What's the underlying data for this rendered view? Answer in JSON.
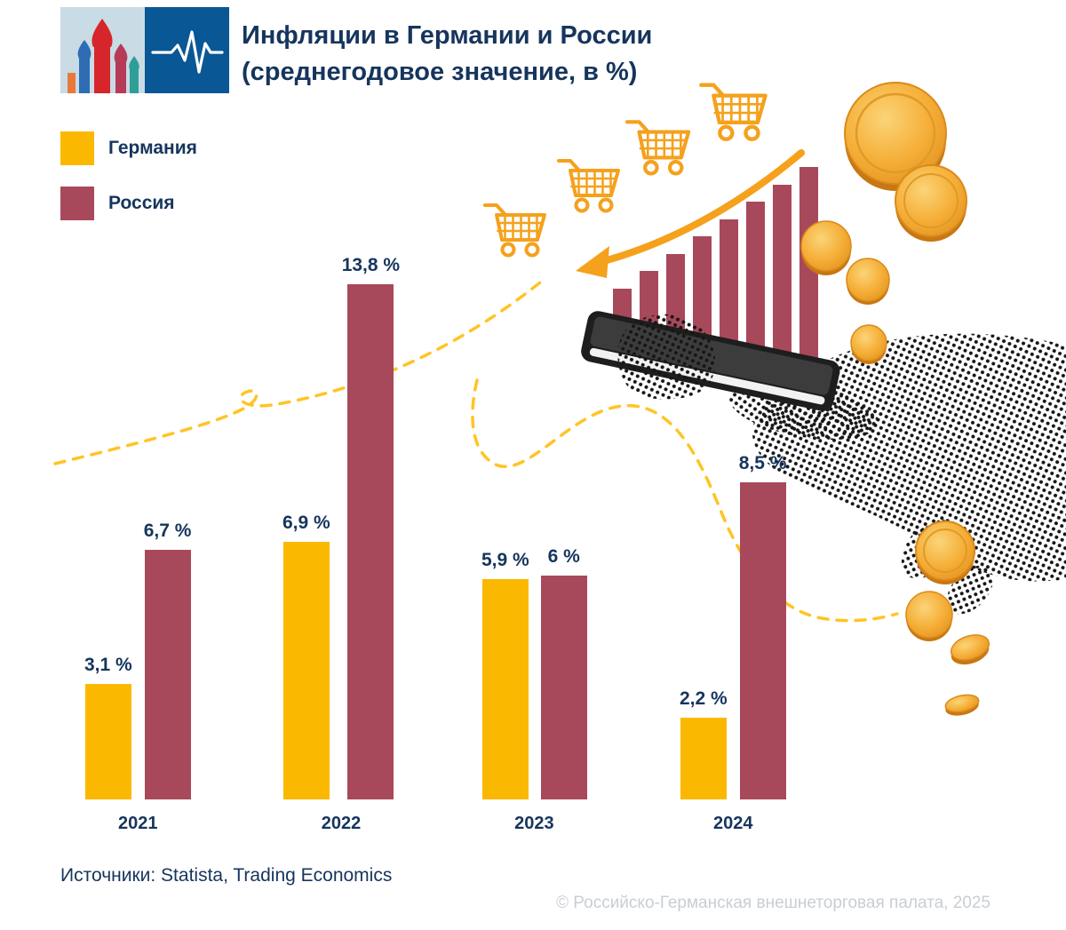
{
  "header": {
    "title_line1": "Инфляции в Германии и России",
    "title_line2": "(среднегодовое значение, в %)"
  },
  "chart_data": {
    "type": "bar",
    "title": "Инфляции в Германии и России (среднегодовое значение, в %)",
    "categories": [
      "2021",
      "2022",
      "2023",
      "2024"
    ],
    "series": [
      {
        "name": "Германия",
        "key": "germany",
        "color": "#FBB800",
        "values": [
          3.1,
          6.9,
          5.9,
          2.2
        ],
        "labels": [
          "3,1 %",
          "6,9 %",
          "5,9 %",
          "2,2 %"
        ]
      },
      {
        "name": "Россия",
        "key": "russia",
        "color": "#A8495B",
        "values": [
          6.7,
          13.8,
          6.0,
          8.5
        ],
        "labels": [
          "6,7 %",
          "13,8 %",
          "6 %",
          "8,5 %"
        ]
      }
    ],
    "xlabel": "",
    "ylabel": "",
    "ylim": [
      0,
      14
    ],
    "grid": false,
    "legend_position": "top-left"
  },
  "colors": {
    "germany": "#FBB800",
    "russia": "#A8495B",
    "text_navy": "#16355D",
    "accent_orange": "#F5A11C",
    "dash_yellow": "#FFC425",
    "coin_gold": "#F2A93B"
  },
  "decor_icons": [
    "shopping-cart-icon",
    "growth-arrow-icon",
    "coin-icon",
    "hand-holding-phone-illustration",
    "dashed-path",
    "cathedral-logo",
    "pulse-logo"
  ],
  "footer": {
    "source": "Источники: Statista, Trading Economics",
    "copyright": "© Российско-Германская внешнеторговая палата, 2025"
  }
}
